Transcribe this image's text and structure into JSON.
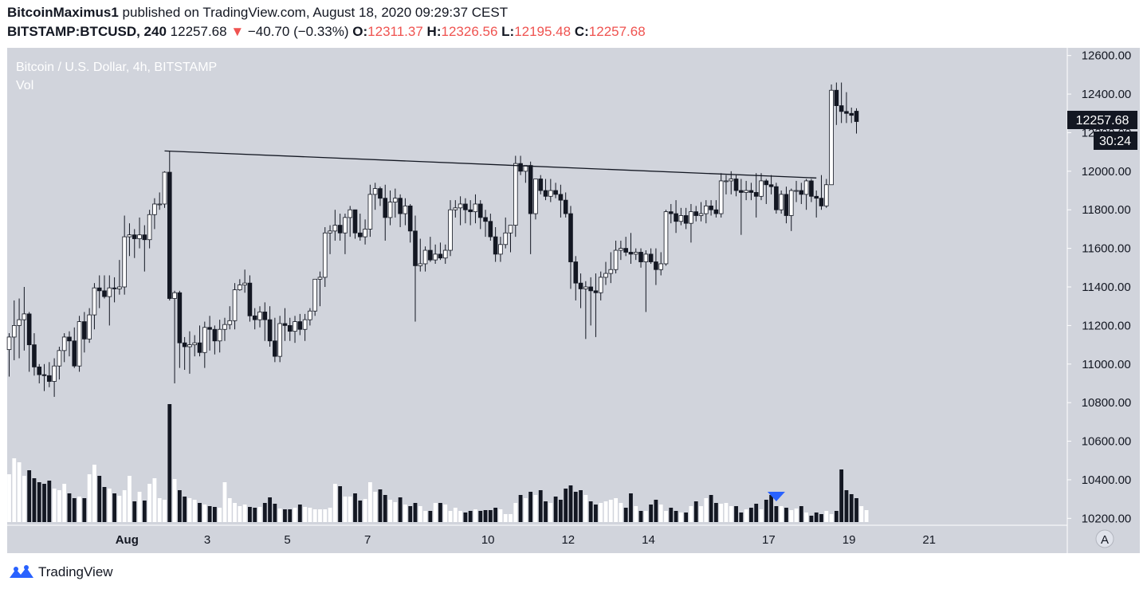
{
  "header": {
    "author": "BitcoinMaximus1",
    "published_text": "published on TradingView.com, August 18, 2020 09:29:37 CEST",
    "symbol_interval": "BITSTAMP:BTCUSD, 240",
    "price": "12257.68",
    "change": "−40.70 (−0.33%)",
    "open_label": "O:",
    "open": "12311.37",
    "high_label": "H:",
    "high": "12326.56",
    "low_label": "L:",
    "low": "12195.48",
    "close_label": "C:",
    "close": "12257.68"
  },
  "chart_data": {
    "type": "candlestick",
    "title": "Bitcoin / U.S. Dollar, 4h, BITSTAMP",
    "volume_label": "Vol",
    "y_ticks": [
      10200,
      10400,
      10600,
      10800,
      11000,
      11200,
      11400,
      11600,
      11800,
      12000,
      12200,
      12400,
      12600
    ],
    "y_range": [
      10160,
      12640
    ],
    "x_tick_labels": [
      "Aug",
      "3",
      "5",
      "7",
      "10",
      "12",
      "14",
      "17",
      "19",
      "21"
    ],
    "x_tick_dates": [
      "2020-08-01",
      "2020-08-03",
      "2020-08-05",
      "2020-08-07",
      "2020-08-10",
      "2020-08-12",
      "2020-08-14",
      "2020-08-17",
      "2020-08-19",
      "2020-08-21"
    ],
    "x_tick_bar_index": [
      23.5,
      39.5,
      55.5,
      71.5,
      95.5,
      111.5,
      127.5,
      151.5,
      167.5,
      183.5
    ],
    "last_price_label": "12257.68",
    "countdown_label": "30:24",
    "trendline": {
      "start": {
        "bar": 31,
        "price": 12105
      },
      "end": {
        "bar": 161,
        "price": 11965
      }
    },
    "volume_marker_bar": 153,
    "candles": [
      {
        "o": 11075,
        "h": 11160,
        "l": 10935,
        "c": 11140
      },
      {
        "o": 11140,
        "h": 11330,
        "l": 11020,
        "c": 11200
      },
      {
        "o": 11200,
        "h": 11340,
        "l": 11030,
        "c": 11230
      },
      {
        "o": 11230,
        "h": 11400,
        "l": 11070,
        "c": 11260
      },
      {
        "o": 11260,
        "h": 11270,
        "l": 10960,
        "c": 11100
      },
      {
        "o": 11100,
        "h": 11160,
        "l": 10940,
        "c": 10985
      },
      {
        "o": 10985,
        "h": 11000,
        "l": 10900,
        "c": 10945
      },
      {
        "o": 10945,
        "h": 11000,
        "l": 10860,
        "c": 10940
      },
      {
        "o": 10940,
        "h": 11010,
        "l": 10880,
        "c": 10910
      },
      {
        "o": 10910,
        "h": 11030,
        "l": 10830,
        "c": 10990
      },
      {
        "o": 10990,
        "h": 11090,
        "l": 10920,
        "c": 11070
      },
      {
        "o": 11070,
        "h": 11160,
        "l": 11010,
        "c": 11140
      },
      {
        "o": 11140,
        "h": 11170,
        "l": 11040,
        "c": 11120
      },
      {
        "o": 11120,
        "h": 11190,
        "l": 10980,
        "c": 10990
      },
      {
        "o": 10990,
        "h": 11250,
        "l": 10960,
        "c": 11220
      },
      {
        "o": 11220,
        "h": 11270,
        "l": 11060,
        "c": 11130
      },
      {
        "o": 11130,
        "h": 11290,
        "l": 11110,
        "c": 11255
      },
      {
        "o": 11255,
        "h": 11420,
        "l": 11180,
        "c": 11395
      },
      {
        "o": 11395,
        "h": 11460,
        "l": 11290,
        "c": 11380
      },
      {
        "o": 11380,
        "h": 11460,
        "l": 11340,
        "c": 11350
      },
      {
        "o": 11350,
        "h": 11460,
        "l": 11200,
        "c": 11395
      },
      {
        "o": 11395,
        "h": 11450,
        "l": 11320,
        "c": 11390
      },
      {
        "o": 11390,
        "h": 11540,
        "l": 11360,
        "c": 11400
      },
      {
        "o": 11400,
        "h": 11770,
        "l": 11360,
        "c": 11660
      },
      {
        "o": 11660,
        "h": 11730,
        "l": 11560,
        "c": 11670
      },
      {
        "o": 11670,
        "h": 11700,
        "l": 11550,
        "c": 11650
      },
      {
        "o": 11650,
        "h": 11760,
        "l": 11600,
        "c": 11670
      },
      {
        "o": 11670,
        "h": 11720,
        "l": 11480,
        "c": 11645
      },
      {
        "o": 11645,
        "h": 11800,
        "l": 11600,
        "c": 11775
      },
      {
        "o": 11775,
        "h": 11860,
        "l": 11700,
        "c": 11830
      },
      {
        "o": 11830,
        "h": 11890,
        "l": 11800,
        "c": 11830
      },
      {
        "o": 11830,
        "h": 12000,
        "l": 11810,
        "c": 11995
      },
      {
        "o": 11995,
        "h": 12105,
        "l": 11330,
        "c": 11340
      },
      {
        "o": 11340,
        "h": 11380,
        "l": 10900,
        "c": 11370
      },
      {
        "o": 11370,
        "h": 11380,
        "l": 10980,
        "c": 11110
      },
      {
        "o": 11110,
        "h": 11140,
        "l": 10970,
        "c": 11090
      },
      {
        "o": 11090,
        "h": 11170,
        "l": 10950,
        "c": 11100
      },
      {
        "o": 11100,
        "h": 11150,
        "l": 11040,
        "c": 11110
      },
      {
        "o": 11110,
        "h": 11200,
        "l": 11040,
        "c": 11060
      },
      {
        "o": 11060,
        "h": 11220,
        "l": 10980,
        "c": 11190
      },
      {
        "o": 11190,
        "h": 11250,
        "l": 11070,
        "c": 11180
      },
      {
        "o": 11180,
        "h": 11200,
        "l": 11050,
        "c": 11120
      },
      {
        "o": 11120,
        "h": 11230,
        "l": 11060,
        "c": 11180
      },
      {
        "o": 11180,
        "h": 11240,
        "l": 11120,
        "c": 11205
      },
      {
        "o": 11205,
        "h": 11300,
        "l": 11180,
        "c": 11225
      },
      {
        "o": 11225,
        "h": 11420,
        "l": 11180,
        "c": 11385
      },
      {
        "o": 11385,
        "h": 11440,
        "l": 11380,
        "c": 11410
      },
      {
        "o": 11410,
        "h": 11490,
        "l": 11370,
        "c": 11420
      },
      {
        "o": 11420,
        "h": 11460,
        "l": 11220,
        "c": 11250
      },
      {
        "o": 11250,
        "h": 11290,
        "l": 11180,
        "c": 11230
      },
      {
        "o": 11230,
        "h": 11300,
        "l": 11190,
        "c": 11270
      },
      {
        "o": 11270,
        "h": 11320,
        "l": 11120,
        "c": 11230
      },
      {
        "o": 11230,
        "h": 11300,
        "l": 11090,
        "c": 11120
      },
      {
        "o": 11120,
        "h": 11240,
        "l": 11010,
        "c": 11040
      },
      {
        "o": 11040,
        "h": 11250,
        "l": 11010,
        "c": 11210
      },
      {
        "o": 11210,
        "h": 11290,
        "l": 11120,
        "c": 11200
      },
      {
        "o": 11200,
        "h": 11240,
        "l": 11120,
        "c": 11170
      },
      {
        "o": 11170,
        "h": 11250,
        "l": 11110,
        "c": 11220
      },
      {
        "o": 11220,
        "h": 11260,
        "l": 11150,
        "c": 11180
      },
      {
        "o": 11180,
        "h": 11260,
        "l": 11120,
        "c": 11230
      },
      {
        "o": 11230,
        "h": 11290,
        "l": 11200,
        "c": 11275
      },
      {
        "o": 11275,
        "h": 11440,
        "l": 11250,
        "c": 11440
      },
      {
        "o": 11440,
        "h": 11480,
        "l": 11300,
        "c": 11450
      },
      {
        "o": 11450,
        "h": 11710,
        "l": 11400,
        "c": 11680
      },
      {
        "o": 11680,
        "h": 11720,
        "l": 11570,
        "c": 11690
      },
      {
        "o": 11690,
        "h": 11800,
        "l": 11640,
        "c": 11720
      },
      {
        "o": 11720,
        "h": 11780,
        "l": 11640,
        "c": 11680
      },
      {
        "o": 11680,
        "h": 11780,
        "l": 11570,
        "c": 11760
      },
      {
        "o": 11760,
        "h": 11820,
        "l": 11660,
        "c": 11800
      },
      {
        "o": 11800,
        "h": 11800,
        "l": 11650,
        "c": 11680
      },
      {
        "o": 11680,
        "h": 11780,
        "l": 11640,
        "c": 11660
      },
      {
        "o": 11660,
        "h": 11750,
        "l": 11620,
        "c": 11700
      },
      {
        "o": 11700,
        "h": 11930,
        "l": 11660,
        "c": 11880
      },
      {
        "o": 11880,
        "h": 11940,
        "l": 11800,
        "c": 11910
      },
      {
        "o": 11910,
        "h": 11920,
        "l": 11820,
        "c": 11860
      },
      {
        "o": 11860,
        "h": 11930,
        "l": 11640,
        "c": 11760
      },
      {
        "o": 11760,
        "h": 11900,
        "l": 11720,
        "c": 11840
      },
      {
        "o": 11840,
        "h": 11910,
        "l": 11760,
        "c": 11860
      },
      {
        "o": 11860,
        "h": 11880,
        "l": 11710,
        "c": 11780
      },
      {
        "o": 11780,
        "h": 11860,
        "l": 11720,
        "c": 11820
      },
      {
        "o": 11820,
        "h": 11830,
        "l": 11630,
        "c": 11690
      },
      {
        "o": 11690,
        "h": 11770,
        "l": 11220,
        "c": 11510
      },
      {
        "o": 11510,
        "h": 11650,
        "l": 11480,
        "c": 11520
      },
      {
        "o": 11520,
        "h": 11610,
        "l": 11480,
        "c": 11590
      },
      {
        "o": 11590,
        "h": 11660,
        "l": 11530,
        "c": 11540
      },
      {
        "o": 11540,
        "h": 11620,
        "l": 11520,
        "c": 11570
      },
      {
        "o": 11570,
        "h": 11630,
        "l": 11540,
        "c": 11550
      },
      {
        "o": 11550,
        "h": 11620,
        "l": 11520,
        "c": 11590
      },
      {
        "o": 11590,
        "h": 11850,
        "l": 11560,
        "c": 11800
      },
      {
        "o": 11800,
        "h": 11850,
        "l": 11760,
        "c": 11810
      },
      {
        "o": 11810,
        "h": 11870,
        "l": 11720,
        "c": 11830
      },
      {
        "o": 11830,
        "h": 11860,
        "l": 11730,
        "c": 11800
      },
      {
        "o": 11800,
        "h": 11850,
        "l": 11720,
        "c": 11790
      },
      {
        "o": 11790,
        "h": 11880,
        "l": 11730,
        "c": 11830
      },
      {
        "o": 11830,
        "h": 11850,
        "l": 11700,
        "c": 11760
      },
      {
        "o": 11760,
        "h": 11800,
        "l": 11660,
        "c": 11740
      },
      {
        "o": 11740,
        "h": 11780,
        "l": 11640,
        "c": 11660
      },
      {
        "o": 11660,
        "h": 11710,
        "l": 11530,
        "c": 11570
      },
      {
        "o": 11570,
        "h": 11660,
        "l": 11530,
        "c": 11620
      },
      {
        "o": 11620,
        "h": 11760,
        "l": 11600,
        "c": 11680
      },
      {
        "o": 11680,
        "h": 11720,
        "l": 11580,
        "c": 11720
      },
      {
        "o": 11720,
        "h": 12080,
        "l": 11660,
        "c": 12040
      },
      {
        "o": 12040,
        "h": 12080,
        "l": 11980,
        "c": 12000
      },
      {
        "o": 12000,
        "h": 12030,
        "l": 11940,
        "c": 12030
      },
      {
        "o": 12030,
        "h": 12050,
        "l": 11570,
        "c": 11780
      },
      {
        "o": 11780,
        "h": 11960,
        "l": 11750,
        "c": 11960
      },
      {
        "o": 11960,
        "h": 11980,
        "l": 11880,
        "c": 11900
      },
      {
        "o": 11900,
        "h": 11960,
        "l": 11850,
        "c": 11870
      },
      {
        "o": 11870,
        "h": 11960,
        "l": 11840,
        "c": 11900
      },
      {
        "o": 11900,
        "h": 11940,
        "l": 11860,
        "c": 11880
      },
      {
        "o": 11880,
        "h": 11930,
        "l": 11760,
        "c": 11850
      },
      {
        "o": 11850,
        "h": 11890,
        "l": 11760,
        "c": 11780
      },
      {
        "o": 11780,
        "h": 11820,
        "l": 11390,
        "c": 11530
      },
      {
        "o": 11530,
        "h": 11560,
        "l": 11330,
        "c": 11420
      },
      {
        "o": 11420,
        "h": 11470,
        "l": 11290,
        "c": 11390
      },
      {
        "o": 11390,
        "h": 11430,
        "l": 11130,
        "c": 11400
      },
      {
        "o": 11400,
        "h": 11450,
        "l": 11200,
        "c": 11380
      },
      {
        "o": 11380,
        "h": 11470,
        "l": 11140,
        "c": 11370
      },
      {
        "o": 11370,
        "h": 11480,
        "l": 11330,
        "c": 11450
      },
      {
        "o": 11450,
        "h": 11530,
        "l": 11410,
        "c": 11470
      },
      {
        "o": 11470,
        "h": 11580,
        "l": 11420,
        "c": 11490
      },
      {
        "o": 11490,
        "h": 11640,
        "l": 11470,
        "c": 11590
      },
      {
        "o": 11590,
        "h": 11640,
        "l": 11540,
        "c": 11600
      },
      {
        "o": 11600,
        "h": 11660,
        "l": 11560,
        "c": 11580
      },
      {
        "o": 11580,
        "h": 11680,
        "l": 11520,
        "c": 11570
      },
      {
        "o": 11570,
        "h": 11600,
        "l": 11540,
        "c": 11580
      },
      {
        "o": 11580,
        "h": 11600,
        "l": 11500,
        "c": 11530
      },
      {
        "o": 11530,
        "h": 11590,
        "l": 11270,
        "c": 11570
      },
      {
        "o": 11570,
        "h": 11600,
        "l": 11520,
        "c": 11530
      },
      {
        "o": 11530,
        "h": 11600,
        "l": 11410,
        "c": 11490
      },
      {
        "o": 11490,
        "h": 11580,
        "l": 11460,
        "c": 11520
      },
      {
        "o": 11520,
        "h": 11800,
        "l": 11510,
        "c": 11790
      },
      {
        "o": 11790,
        "h": 11830,
        "l": 11730,
        "c": 11780
      },
      {
        "o": 11780,
        "h": 11850,
        "l": 11680,
        "c": 11740
      },
      {
        "o": 11740,
        "h": 11810,
        "l": 11720,
        "c": 11770
      },
      {
        "o": 11770,
        "h": 11810,
        "l": 11700,
        "c": 11730
      },
      {
        "o": 11730,
        "h": 11830,
        "l": 11630,
        "c": 11790
      },
      {
        "o": 11790,
        "h": 11820,
        "l": 11740,
        "c": 11770
      },
      {
        "o": 11770,
        "h": 11840,
        "l": 11740,
        "c": 11780
      },
      {
        "o": 11780,
        "h": 11850,
        "l": 11730,
        "c": 11820
      },
      {
        "o": 11820,
        "h": 11850,
        "l": 11770,
        "c": 11800
      },
      {
        "o": 11800,
        "h": 11850,
        "l": 11760,
        "c": 11780
      },
      {
        "o": 11780,
        "h": 11990,
        "l": 11760,
        "c": 11950
      },
      {
        "o": 11950,
        "h": 11980,
        "l": 11880,
        "c": 11950
      },
      {
        "o": 11950,
        "h": 12000,
        "l": 11880,
        "c": 11960
      },
      {
        "o": 11960,
        "h": 11980,
        "l": 11870,
        "c": 11900
      },
      {
        "o": 11900,
        "h": 11960,
        "l": 11670,
        "c": 11890
      },
      {
        "o": 11890,
        "h": 11950,
        "l": 11850,
        "c": 11900
      },
      {
        "o": 11900,
        "h": 11940,
        "l": 11850,
        "c": 11890
      },
      {
        "o": 11890,
        "h": 11990,
        "l": 11760,
        "c": 11870
      },
      {
        "o": 11870,
        "h": 11990,
        "l": 11850,
        "c": 11950
      },
      {
        "o": 11950,
        "h": 11960,
        "l": 11830,
        "c": 11930
      },
      {
        "o": 11930,
        "h": 11980,
        "l": 11880,
        "c": 11920
      },
      {
        "o": 11920,
        "h": 11940,
        "l": 11780,
        "c": 11800
      },
      {
        "o": 11800,
        "h": 11900,
        "l": 11780,
        "c": 11880
      },
      {
        "o": 11880,
        "h": 11920,
        "l": 11730,
        "c": 11770
      },
      {
        "o": 11770,
        "h": 11910,
        "l": 11690,
        "c": 11900
      },
      {
        "o": 11900,
        "h": 11950,
        "l": 11840,
        "c": 11900
      },
      {
        "o": 11900,
        "h": 11940,
        "l": 11830,
        "c": 11880
      },
      {
        "o": 11880,
        "h": 11960,
        "l": 11800,
        "c": 11950
      },
      {
        "o": 11950,
        "h": 11960,
        "l": 11840,
        "c": 11870
      },
      {
        "o": 11870,
        "h": 11900,
        "l": 11760,
        "c": 11860
      },
      {
        "o": 11860,
        "h": 11980,
        "l": 11800,
        "c": 11820
      },
      {
        "o": 11820,
        "h": 11960,
        "l": 11810,
        "c": 11930
      },
      {
        "o": 11930,
        "h": 12450,
        "l": 11930,
        "c": 12420
      },
      {
        "o": 12420,
        "h": 12460,
        "l": 12240,
        "c": 12340
      },
      {
        "o": 12340,
        "h": 12460,
        "l": 12250,
        "c": 12310
      },
      {
        "o": 12310,
        "h": 12410,
        "l": 12250,
        "c": 12300
      },
      {
        "o": 12300,
        "h": 12330,
        "l": 12250,
        "c": 12290
      },
      {
        "o": 12311.37,
        "h": 12326.56,
        "l": 12195.48,
        "c": 12257.68
      }
    ],
    "volume": [
      60,
      80,
      75,
      58,
      65,
      55,
      50,
      48,
      52,
      42,
      40,
      48,
      36,
      30,
      32,
      30,
      60,
      72,
      58,
      44,
      42,
      36,
      33,
      40,
      58,
      26,
      38,
      27,
      48,
      55,
      30,
      28,
      148,
      54,
      40,
      32,
      30,
      28,
      24,
      22,
      20,
      19,
      18,
      50,
      30,
      24,
      20,
      22,
      19,
      18,
      19,
      24,
      31,
      23,
      17,
      16,
      16,
      18,
      22,
      19,
      18,
      16,
      16,
      16,
      18,
      48,
      45,
      32,
      32,
      36,
      27,
      29,
      50,
      38,
      41,
      34,
      28,
      25,
      31,
      22,
      20,
      24,
      20,
      14,
      14,
      24,
      24,
      22,
      14,
      18,
      14,
      12,
      14,
      16,
      14,
      15,
      15,
      18,
      16,
      10,
      10,
      24,
      34,
      30,
      38,
      34,
      40,
      26,
      24,
      32,
      28,
      42,
      46,
      38,
      40,
      34,
      26,
      22,
      24,
      26,
      28,
      30,
      24,
      18,
      36,
      20,
      14,
      14,
      22,
      28,
      22,
      14,
      18,
      14,
      12,
      12,
      20,
      26,
      20,
      30,
      34,
      24,
      23,
      24,
      20,
      20,
      12,
      16,
      18,
      23,
      16,
      28,
      34,
      20,
      20,
      18,
      15,
      17,
      20,
      12,
      8,
      12,
      10,
      14,
      10,
      14,
      66,
      40,
      35,
      30,
      20,
      15
    ],
    "volume_colors": "by candle direction: up = white, down = black"
  },
  "footer": {
    "brand": "TradingView"
  },
  "colors": {
    "chart_bg": "#d1d4dc",
    "up": "#ffffff",
    "down": "#131722",
    "marker": "#2962ff",
    "change_red": "#ef5350"
  }
}
